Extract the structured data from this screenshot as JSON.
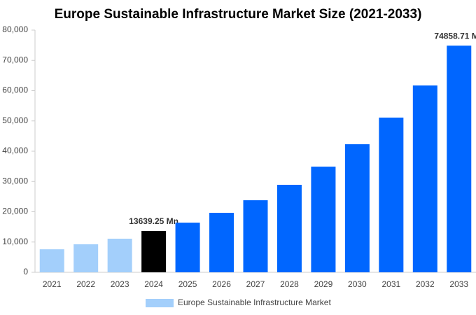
{
  "chart_data": {
    "type": "bar",
    "title": "Europe Sustainable Infrastructure Market Size (2021-2033)",
    "categories": [
      "2021",
      "2022",
      "2023",
      "2024",
      "2025",
      "2026",
      "2027",
      "2028",
      "2029",
      "2030",
      "2031",
      "2032",
      "2033"
    ],
    "series": [
      {
        "name": "Europe Sustainable Infrastructure Market",
        "color": "#a3cffb",
        "colors": [
          "#a3cffb",
          "#a3cffb",
          "#a3cffb",
          "#000000",
          "#0066ff",
          "#0066ff",
          "#0066ff",
          "#0066ff",
          "#0066ff",
          "#0066ff",
          "#0066ff",
          "#0066ff",
          "#0066ff"
        ],
        "values": [
          7600,
          9250,
          11100,
          13639.25,
          16400,
          19650,
          23800,
          28900,
          34900,
          42300,
          51100,
          61700,
          74858.71
        ],
        "value_labels": [
          null,
          null,
          null,
          "13639.25 Mn",
          null,
          null,
          null,
          null,
          null,
          null,
          null,
          null,
          "74858.71 Mn"
        ]
      }
    ],
    "ylim": [
      0,
      80000
    ],
    "yticks": [
      0,
      {
        "value": 10000,
        "label": "10,000"
      },
      {
        "value": 20000,
        "label": "20,000"
      },
      {
        "value": 30000,
        "label": "30,000"
      },
      {
        "value": 40000,
        "label": "40,000"
      },
      {
        "value": 50000,
        "label": "50,000"
      },
      {
        "value": 60000,
        "label": "60,000"
      },
      {
        "value": 70000,
        "label": "70,000"
      },
      {
        "value": 80000,
        "label": "80,000"
      }
    ],
    "grid": false
  }
}
